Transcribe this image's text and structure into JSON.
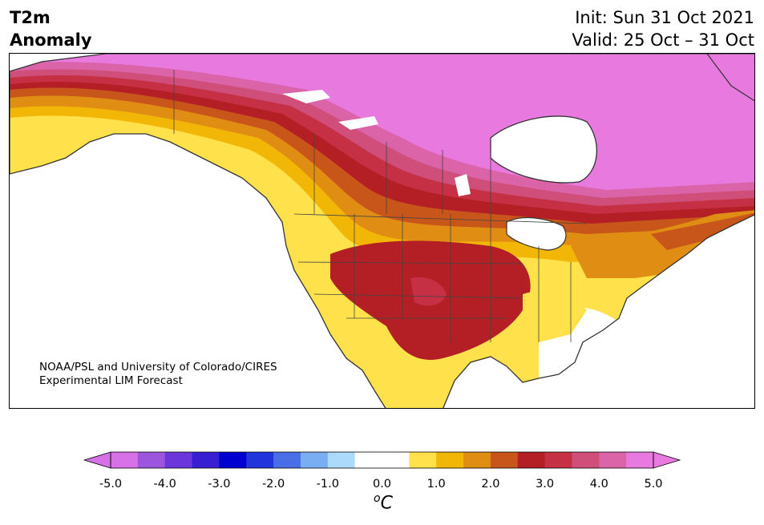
{
  "title": {
    "line1": "T2m",
    "line2": "Anomaly"
  },
  "valid_info": {
    "init": "Init: Sun 31 Oct 2021",
    "valid": "Valid: 25 Oct – 31 Oct"
  },
  "credit": {
    "line1": "NOAA/PSL and University of Colorado/CIRES",
    "line2": "Experimental LIM Forecast"
  },
  "colorbar": {
    "unit_base": "C",
    "unit_sup": "o",
    "colors": [
      "#d771e8",
      "#9c55dd",
      "#6c36dd",
      "#3820d2",
      "#0000d0",
      "#2234db",
      "#4a6ee5",
      "#7aaef2",
      "#acdafa",
      "#ffffff",
      "#ffffff",
      "#ffe14c",
      "#f2b606",
      "#e08e13",
      "#c8551a",
      "#b31f25",
      "#c53044",
      "#cf4e7a",
      "#db63a8",
      "#e879de"
    ],
    "under_color": "#d771e8",
    "over_color": "#e879de",
    "ticks": [
      "-5.0",
      "-4.0",
      "-3.0",
      "-2.0",
      "-1.0",
      "0.0",
      "1.0",
      "2.0",
      "3.0",
      "4.0",
      "5.0"
    ]
  },
  "map": {
    "ocean_color": "#ffffff",
    "lake_color": "#ffffff",
    "border_color": "#333333"
  }
}
